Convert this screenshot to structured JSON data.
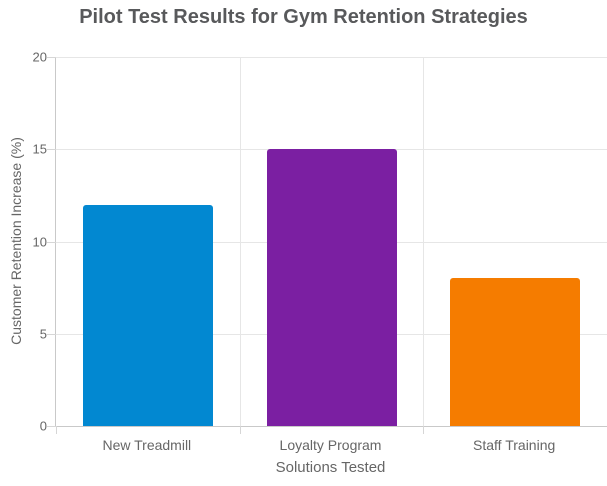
{
  "chart_data": {
    "type": "bar",
    "title": "Pilot Test Results for Gym Retention Strategies",
    "categories": [
      "New Treadmill",
      "Loyalty Program",
      "Staff Training"
    ],
    "values": [
      12,
      15,
      8
    ],
    "bar_colors": [
      "#0288D1",
      "#7B1FA2",
      "#F57C00"
    ],
    "xlabel": "Solutions Tested",
    "ylabel": "Customer Retention Increase (%)",
    "ylim": [
      0,
      20
    ],
    "yticks": [
      0,
      5,
      10,
      15,
      20
    ],
    "grid": true,
    "legend": "none"
  },
  "colors": {
    "title_text": "#58595B",
    "axis_text": "#666666",
    "gridline": "#E6E6E6",
    "axis_line": "#C9C9C9"
  }
}
